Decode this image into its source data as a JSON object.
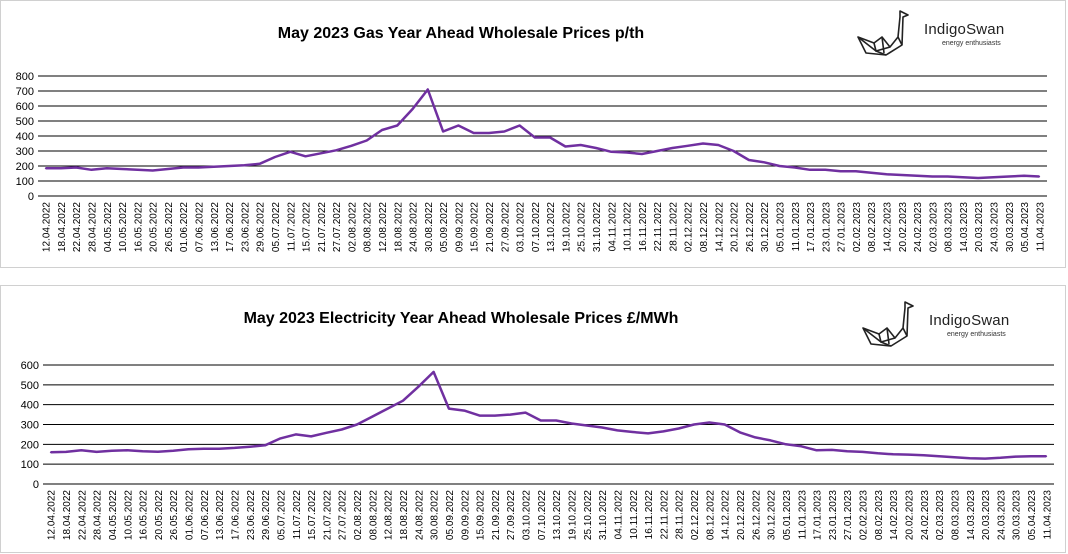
{
  "brand": {
    "name": "IndigoSwan",
    "tagline": "energy enthusiasts",
    "icon": "swan-origami-icon"
  },
  "colors": {
    "line": "#7030a0",
    "grid": "#000000"
  },
  "dates": [
    "12.04.2022",
    "18.04.2022",
    "22.04.2022",
    "28.04.2022",
    "04.05.2022",
    "10.05.2022",
    "16.05.2022",
    "20.05.2022",
    "26.05.2022",
    "01.06.2022",
    "07.06.2022",
    "13.06.2022",
    "17.06.2022",
    "23.06.2022",
    "29.06.2022",
    "05.07.2022",
    "11.07.2022",
    "15.07.2022",
    "21.07.2022",
    "27.07.2022",
    "02.08.2022",
    "08.08.2022",
    "12.08.2022",
    "18.08.2022",
    "24.08.2022",
    "30.08.2022",
    "05.09.2022",
    "09.09.2022",
    "15.09.2022",
    "21.09.2022",
    "27.09.2022",
    "03.10.2022",
    "07.10.2022",
    "13.10.2022",
    "19.10.2022",
    "25.10.2022",
    "31.10.2022",
    "04.11.2022",
    "10.11.2022",
    "16.11.2022",
    "22.11.2022",
    "28.11.2022",
    "02.12.2022",
    "08.12.2022",
    "14.12.2022",
    "20.12.2022",
    "26.12.2022",
    "30.12.2022",
    "05.01.2023",
    "11.01.2023",
    "17.01.2023",
    "23.01.2023",
    "27.01.2023",
    "02.02.2023",
    "08.02.2023",
    "14.02.2023",
    "20.02.2023",
    "24.02.2023",
    "02.03.2023",
    "08.03.2023",
    "14.03.2023",
    "20.03.2023",
    "24.03.2023",
    "30.03.2023",
    "05.04.2023",
    "11.04.2023"
  ],
  "chart_data": [
    {
      "type": "line",
      "title": "May 2023 Gas Year Ahead Wholesale Prices p/th",
      "xlabel": "",
      "ylabel": "",
      "ylim": [
        0,
        800
      ],
      "yticks": [
        "0",
        "100",
        "200",
        "300",
        "400",
        "500",
        "600",
        "700",
        "800"
      ],
      "grid": true,
      "x": [
        "12.04.2022",
        "18.04.2022",
        "22.04.2022",
        "28.04.2022",
        "04.05.2022",
        "10.05.2022",
        "16.05.2022",
        "20.05.2022",
        "26.05.2022",
        "01.06.2022",
        "07.06.2022",
        "13.06.2022",
        "17.06.2022",
        "23.06.2022",
        "29.06.2022",
        "05.07.2022",
        "11.07.2022",
        "15.07.2022",
        "21.07.2022",
        "27.07.2022",
        "02.08.2022",
        "08.08.2022",
        "12.08.2022",
        "18.08.2022",
        "24.08.2022",
        "30.08.2022",
        "05.09.2022",
        "09.09.2022",
        "15.09.2022",
        "21.09.2022",
        "27.09.2022",
        "03.10.2022",
        "07.10.2022",
        "13.10.2022",
        "19.10.2022",
        "25.10.2022",
        "31.10.2022",
        "04.11.2022",
        "10.11.2022",
        "16.11.2022",
        "22.11.2022",
        "28.11.2022",
        "02.12.2022",
        "08.12.2022",
        "14.12.2022",
        "20.12.2022",
        "26.12.2022",
        "30.12.2022",
        "05.01.2023",
        "11.01.2023",
        "17.01.2023",
        "23.01.2023",
        "27.01.2023",
        "02.02.2023",
        "08.02.2023",
        "14.02.2023",
        "20.02.2023",
        "24.02.2023",
        "02.03.2023",
        "08.03.2023",
        "14.03.2023",
        "20.03.2023",
        "24.03.2023",
        "30.03.2023",
        "05.04.2023",
        "11.04.2023"
      ],
      "series": [
        {
          "values": [
            185,
            185,
            190,
            175,
            185,
            180,
            175,
            170,
            180,
            190,
            190,
            195,
            200,
            205,
            215,
            260,
            295,
            265,
            285,
            305,
            335,
            370,
            440,
            470,
            580,
            710,
            430,
            470,
            420,
            420,
            430,
            470,
            390,
            390,
            330,
            340,
            320,
            295,
            290,
            280,
            300,
            320,
            335,
            350,
            340,
            300,
            240,
            225,
            200,
            190,
            175,
            175,
            165,
            165,
            155,
            145,
            140,
            135,
            130,
            130,
            125,
            120,
            125,
            130,
            135,
            130
          ]
        }
      ]
    },
    {
      "type": "line",
      "title": "May 2023 Electricity Year Ahead Wholesale Prices £/MWh",
      "xlabel": "",
      "ylabel": "",
      "ylim": [
        0,
        600
      ],
      "yticks": [
        "0",
        "100",
        "200",
        "300",
        "400",
        "500",
        "600"
      ],
      "grid": true,
      "x": [
        "12.04.2022",
        "18.04.2022",
        "22.04.2022",
        "28.04.2022",
        "04.05.2022",
        "10.05.2022",
        "16.05.2022",
        "20.05.2022",
        "26.05.2022",
        "01.06.2022",
        "07.06.2022",
        "13.06.2022",
        "17.06.2022",
        "23.06.2022",
        "29.06.2022",
        "05.07.2022",
        "11.07.2022",
        "15.07.2022",
        "21.07.2022",
        "27.07.2022",
        "02.08.2022",
        "08.08.2022",
        "12.08.2022",
        "18.08.2022",
        "24.08.2022",
        "30.08.2022",
        "05.09.2022",
        "09.09.2022",
        "15.09.2022",
        "21.09.2022",
        "27.09.2022",
        "03.10.2022",
        "07.10.2022",
        "13.10.2022",
        "19.10.2022",
        "25.10.2022",
        "31.10.2022",
        "04.11.2022",
        "10.11.2022",
        "16.11.2022",
        "22.11.2022",
        "28.11.2022",
        "02.12.2022",
        "08.12.2022",
        "14.12.2022",
        "20.12.2022",
        "26.12.2022",
        "30.12.2022",
        "05.01.2023",
        "11.01.2023",
        "17.01.2023",
        "23.01.2023",
        "27.01.2023",
        "02.02.2023",
        "08.02.2023",
        "14.02.2023",
        "20.02.2023",
        "24.02.2023",
        "02.03.2023",
        "08.03.2023",
        "14.03.2023",
        "20.03.2023",
        "24.03.2023",
        "30.03.2023",
        "05.04.2023",
        "11.04.2023"
      ],
      "series": [
        {
          "values": [
            160,
            162,
            170,
            162,
            168,
            170,
            165,
            163,
            168,
            175,
            178,
            178,
            182,
            188,
            195,
            230,
            250,
            240,
            258,
            275,
            300,
            340,
            380,
            420,
            490,
            565,
            380,
            370,
            345,
            345,
            350,
            360,
            320,
            320,
            305,
            295,
            285,
            270,
            262,
            255,
            265,
            280,
            300,
            310,
            300,
            260,
            235,
            220,
            200,
            190,
            170,
            172,
            165,
            162,
            155,
            150,
            148,
            145,
            140,
            135,
            130,
            128,
            132,
            138,
            140,
            140
          ]
        }
      ]
    }
  ]
}
